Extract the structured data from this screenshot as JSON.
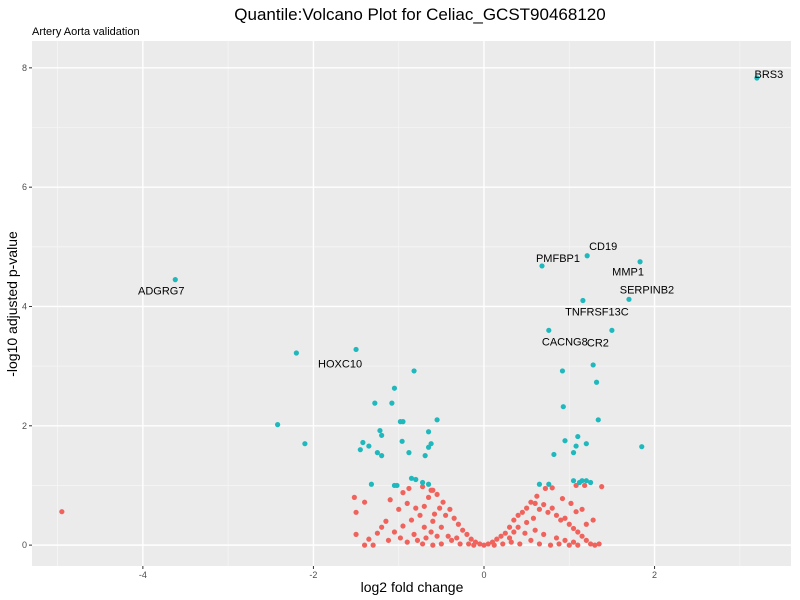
{
  "chart_data": {
    "type": "scatter",
    "title": "Quantile:Volcano Plot for Celiac_GCST90468120",
    "subtitle": "Artery Aorta validation",
    "xlabel": "log2 fold change",
    "ylabel": "-log10 adjusted p-value",
    "xlim": [
      -5.3,
      3.6
    ],
    "ylim": [
      -0.35,
      8.45
    ],
    "x_ticks": [
      -4,
      -2,
      0,
      2
    ],
    "y_ticks": [
      0,
      2,
      4,
      6,
      8
    ],
    "x_tick_labels": [
      "-4",
      "-2",
      "0",
      "2"
    ],
    "y_tick_labels": [
      "0",
      "2",
      "4",
      "6",
      "8"
    ],
    "grid": true,
    "legend": "none",
    "colors": {
      "panel": "#ebebeb",
      "grid_major": "#ffffff",
      "grid_minor": "#f5f5f5",
      "significant": "#1fb8bd",
      "not_significant": "#f0625c"
    },
    "labeled_points": [
      {
        "label": "BRS3",
        "x": 3.2,
        "y": 7.83
      },
      {
        "label": "ADGRG7",
        "x": -3.62,
        "y": 4.45
      },
      {
        "label": "CD19",
        "x": 1.21,
        "y": 4.85
      },
      {
        "label": "PMFBP1",
        "x": 0.68,
        "y": 4.68
      },
      {
        "label": "MMP1",
        "x": 1.83,
        "y": 4.75
      },
      {
        "label": "SERPINB2",
        "x": 1.7,
        "y": 4.12
      },
      {
        "label": "TNFRSF13C",
        "x": 1.16,
        "y": 4.1
      },
      {
        "label": "CACNG8",
        "x": 0.76,
        "y": 3.6
      },
      {
        "label": "CR2",
        "x": 1.5,
        "y": 3.6
      },
      {
        "label": "HOXC10",
        "x": -1.5,
        "y": 3.28
      }
    ],
    "series": [
      {
        "status": "significant",
        "points": [
          [
            -2.2,
            3.22
          ],
          [
            -0.82,
            2.92
          ],
          [
            -1.05,
            2.63
          ],
          [
            -0.55,
            2.1
          ],
          [
            -1.28,
            2.38
          ],
          [
            -1.08,
            2.38
          ],
          [
            -2.42,
            2.02
          ],
          [
            -0.65,
            1.9
          ],
          [
            -0.98,
            2.07
          ],
          [
            -0.95,
            2.07
          ],
          [
            -1.22,
            1.92
          ],
          [
            -1.2,
            1.84
          ],
          [
            -0.96,
            1.74
          ],
          [
            -0.62,
            1.7
          ],
          [
            -0.65,
            1.64
          ],
          [
            -1.42,
            1.72
          ],
          [
            -1.35,
            1.66
          ],
          [
            -1.45,
            1.6
          ],
          [
            -1.25,
            1.55
          ],
          [
            -0.88,
            1.55
          ],
          [
            -0.69,
            1.5
          ],
          [
            -1.2,
            1.5
          ],
          [
            -2.1,
            1.7
          ],
          [
            -0.85,
            1.12
          ],
          [
            -0.8,
            1.1
          ],
          [
            -1.05,
            1.0
          ],
          [
            -0.72,
            1.05
          ],
          [
            -0.65,
            1.02
          ],
          [
            -1.32,
            1.02
          ],
          [
            -1.02,
            1.0
          ],
          [
            0.92,
            2.92
          ],
          [
            1.28,
            3.02
          ],
          [
            1.32,
            2.73
          ],
          [
            0.93,
            2.32
          ],
          [
            1.34,
            2.1
          ],
          [
            1.1,
            1.82
          ],
          [
            1.2,
            1.7
          ],
          [
            0.95,
            1.75
          ],
          [
            1.08,
            1.66
          ],
          [
            1.85,
            1.65
          ],
          [
            0.82,
            1.52
          ],
          [
            1.05,
            1.55
          ],
          [
            1.05,
            1.08
          ],
          [
            1.2,
            1.08
          ],
          [
            1.15,
            1.08
          ],
          [
            1.12,
            1.05
          ],
          [
            0.65,
            1.02
          ],
          [
            0.76,
            1.02
          ],
          [
            1.25,
            1.05
          ]
        ]
      },
      {
        "status": "not_significant",
        "points": [
          [
            -4.95,
            0.56
          ],
          [
            -1.52,
            0.8
          ],
          [
            -1.5,
            0.55
          ],
          [
            -1.4,
            0.72
          ],
          [
            -1.1,
            0.76
          ],
          [
            -0.95,
            0.88
          ],
          [
            -0.6,
            0.92
          ],
          [
            -0.55,
            0.85
          ],
          [
            -0.65,
            0.8
          ],
          [
            -0.7,
            0.65
          ],
          [
            -0.75,
            0.5
          ],
          [
            -0.8,
            0.62
          ],
          [
            -0.9,
            0.7
          ],
          [
            -1.0,
            0.6
          ],
          [
            -1.15,
            0.4
          ],
          [
            -1.2,
            0.3
          ],
          [
            -1.25,
            0.2
          ],
          [
            -1.35,
            0.1
          ],
          [
            -1.4,
            0.0
          ],
          [
            -1.3,
            0.0
          ],
          [
            -1.5,
            0.18
          ],
          [
            -0.4,
            0.6
          ],
          [
            -0.35,
            0.45
          ],
          [
            -0.3,
            0.35
          ],
          [
            -0.25,
            0.25
          ],
          [
            -0.2,
            0.18
          ],
          [
            -0.15,
            0.1
          ],
          [
            -0.5,
            0.3
          ],
          [
            -0.45,
            0.5
          ],
          [
            -0.6,
            0.4
          ],
          [
            -0.7,
            0.3
          ],
          [
            -0.85,
            0.42
          ],
          [
            -0.95,
            0.32
          ],
          [
            -1.05,
            0.22
          ],
          [
            -0.55,
            0.15
          ],
          [
            -0.9,
            0.05
          ],
          [
            -0.78,
            0.08
          ],
          [
            -0.68,
            0.12
          ],
          [
            -0.62,
            0.22
          ],
          [
            -0.48,
            0.72
          ],
          [
            -0.52,
            0.62
          ],
          [
            -0.58,
            0.52
          ],
          [
            -0.62,
            0.92
          ],
          [
            -0.72,
            0.98
          ],
          [
            -0.88,
            0.95
          ],
          [
            -0.1,
            0.05
          ],
          [
            -0.05,
            0.02
          ],
          [
            0.05,
            0.02
          ],
          [
            0.1,
            0.05
          ],
          [
            0.15,
            0.1
          ],
          [
            0.2,
            0.15
          ],
          [
            0.25,
            0.2
          ],
          [
            0.3,
            0.3
          ],
          [
            0.35,
            0.42
          ],
          [
            0.4,
            0.5
          ],
          [
            0.45,
            0.55
          ],
          [
            0.5,
            0.62
          ],
          [
            0.55,
            0.72
          ],
          [
            0.6,
            0.7
          ],
          [
            0.65,
            0.6
          ],
          [
            0.7,
            0.68
          ],
          [
            0.75,
            0.55
          ],
          [
            0.8,
            0.62
          ],
          [
            0.85,
            0.5
          ],
          [
            0.9,
            0.42
          ],
          [
            0.95,
            0.45
          ],
          [
            1.0,
            0.35
          ],
          [
            1.05,
            0.28
          ],
          [
            1.1,
            0.22
          ],
          [
            1.15,
            0.15
          ],
          [
            1.2,
            0.08
          ],
          [
            1.25,
            0.02
          ],
          [
            1.3,
            0.0
          ],
          [
            1.35,
            0.02
          ],
          [
            1.08,
            0.56
          ],
          [
            1.02,
            0.7
          ],
          [
            0.92,
            0.78
          ],
          [
            1.08,
            1.0
          ],
          [
            1.38,
            0.98
          ],
          [
            1.18,
            1.0
          ],
          [
            0.8,
            0.96
          ],
          [
            0.72,
            0.95
          ],
          [
            0.62,
            0.82
          ],
          [
            0.5,
            0.38
          ],
          [
            0.4,
            0.3
          ],
          [
            0.3,
            0.12
          ],
          [
            0.6,
            0.25
          ],
          [
            0.7,
            0.18
          ],
          [
            0.85,
            0.12
          ],
          [
            0.95,
            0.08
          ],
          [
            1.05,
            0.05
          ],
          [
            1.15,
            0.6
          ],
          [
            1.2,
            0.35
          ],
          [
            1.28,
            0.42
          ],
          [
            0.58,
            0.45
          ],
          [
            0.48,
            0.2
          ],
          [
            0.55,
            0.08
          ],
          [
            0.42,
            0.02
          ],
          [
            0.32,
            0.05
          ],
          [
            0.22,
            0.02
          ],
          [
            0.12,
            0.0
          ],
          [
            -0.28,
            0.02
          ],
          [
            -0.38,
            0.08
          ],
          [
            -0.42,
            0.15
          ],
          [
            -0.32,
            0.12
          ],
          [
            -0.18,
            0.02
          ],
          [
            -0.12,
            0.0
          ],
          [
            0.0,
            0.0
          ],
          [
            -0.82,
            0.18
          ],
          [
            -0.98,
            0.12
          ],
          [
            -1.12,
            0.08
          ],
          [
            -0.72,
            0.02
          ],
          [
            -0.6,
            0.0
          ],
          [
            -0.5,
            0.02
          ],
          [
            0.65,
            0.02
          ],
          [
            0.78,
            0.0
          ],
          [
            0.88,
            0.02
          ],
          [
            1.0,
            0.0
          ],
          [
            1.1,
            0.0
          ],
          [
            0.35,
            0.22
          ]
        ]
      }
    ]
  }
}
